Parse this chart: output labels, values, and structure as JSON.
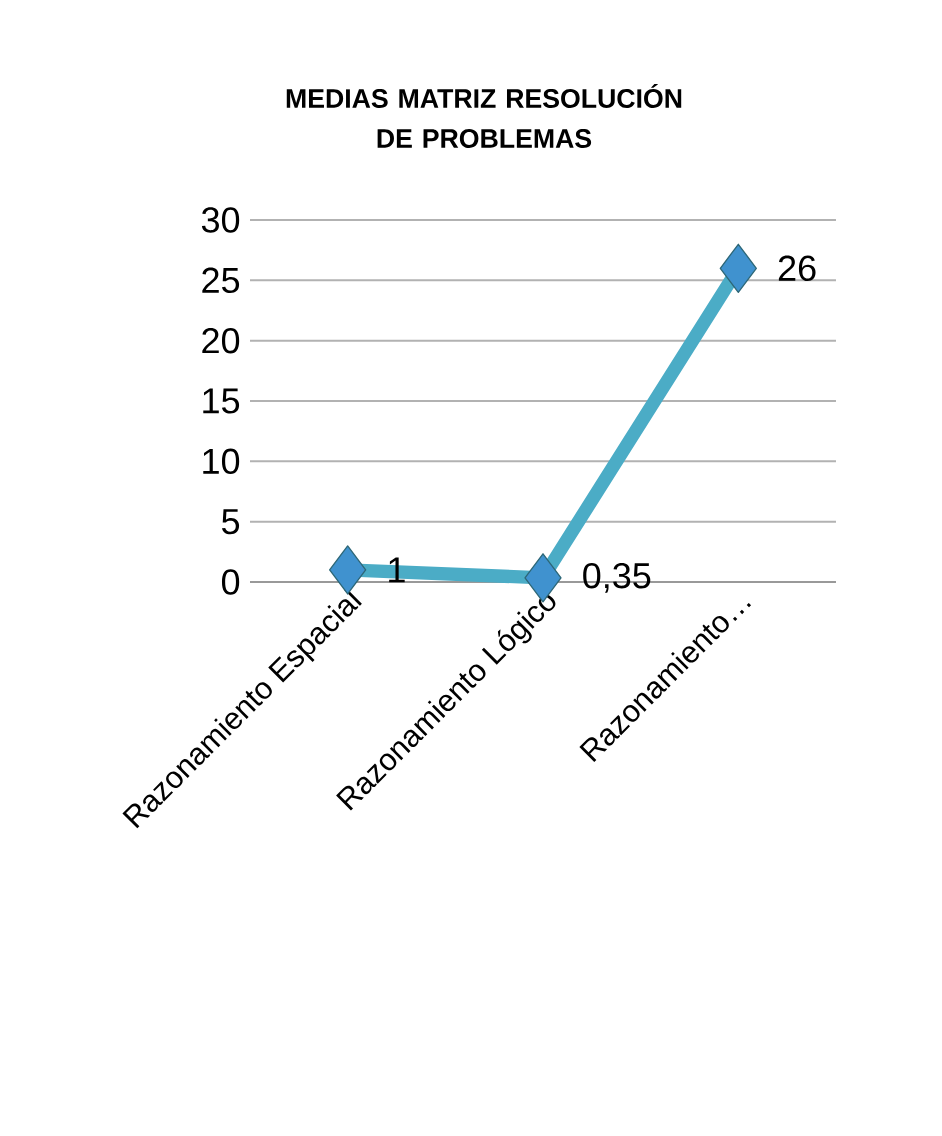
{
  "chart_data": {
    "type": "line",
    "title": "MEDIAS MATRIZ RESOLUCIÓN DE PROBLEMAS",
    "categories": [
      "Razonamiento Espacial",
      "Razonamiento Lógico",
      "Razonamiento…"
    ],
    "series": [
      {
        "color": "#4bacc6",
        "values": [
          1,
          0.35,
          26
        ],
        "value_labels": [
          "1",
          "0,35",
          "26"
        ]
      }
    ],
    "ylim": [
      0,
      30
    ],
    "yticks": [
      0,
      5,
      10,
      15,
      20,
      25,
      30
    ],
    "grid": "y",
    "marker": "diamond",
    "line_style": "solid"
  }
}
